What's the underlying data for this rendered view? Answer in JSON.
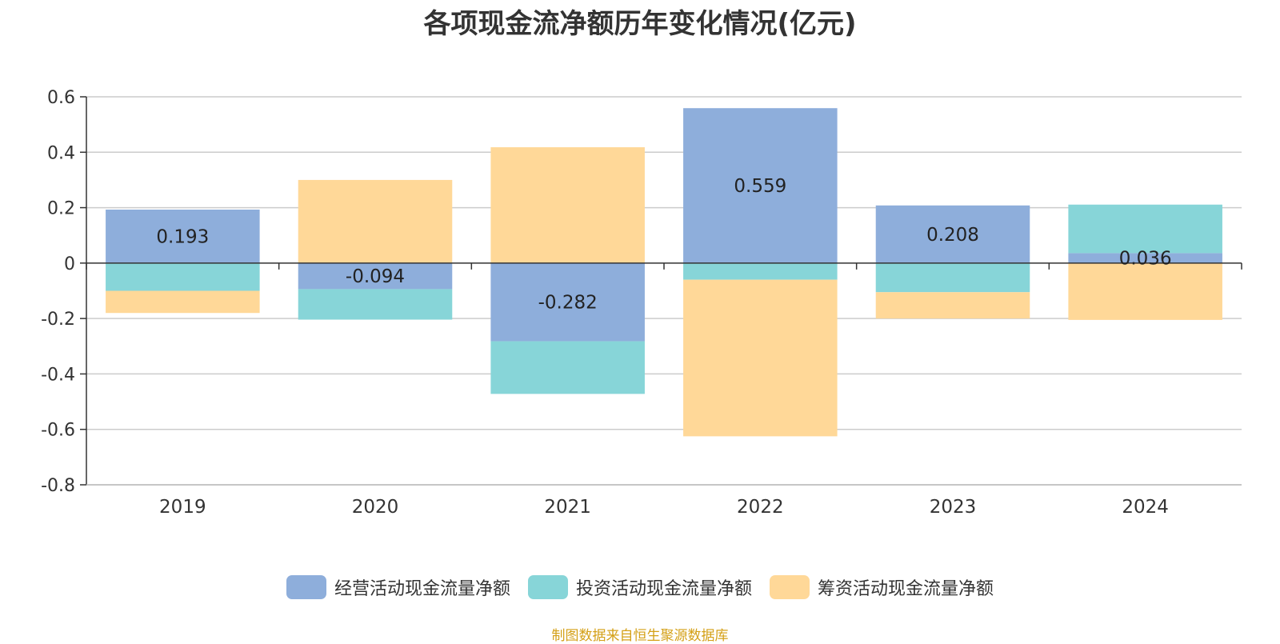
{
  "chart_data": {
    "type": "bar",
    "title": "各项现金流净额历年变化情况(亿元)",
    "categories": [
      "2019",
      "2020",
      "2021",
      "2022",
      "2023",
      "2024"
    ],
    "series": [
      {
        "name": "经营活动现金流量净额",
        "color": "#8eaedb",
        "values": [
          0.193,
          -0.094,
          -0.282,
          0.559,
          0.208,
          0.036
        ],
        "data_labels": [
          "0.193",
          "-0.094",
          "-0.282",
          "0.559",
          "0.208",
          "0.036"
        ]
      },
      {
        "name": "投资活动现金流量净额",
        "color": "#87d5d8",
        "values": [
          -0.1,
          -0.11,
          -0.19,
          -0.06,
          -0.105,
          0.175
        ]
      },
      {
        "name": "筹资活动现金流量净额",
        "color": "#ffd898",
        "values": [
          -0.08,
          0.3,
          0.418,
          -0.565,
          -0.095,
          -0.205
        ]
      }
    ],
    "yticks": [
      "0.6",
      "0.4",
      "0.2",
      "0",
      "-0.2",
      "-0.4",
      "-0.6",
      "-0.8"
    ],
    "ylim": [
      -0.8,
      0.6
    ],
    "stacked": true,
    "grid": true,
    "legend_position": "bottom"
  },
  "source_text": "制图数据来自恒生聚源数据库",
  "source_color": "#d4a017"
}
